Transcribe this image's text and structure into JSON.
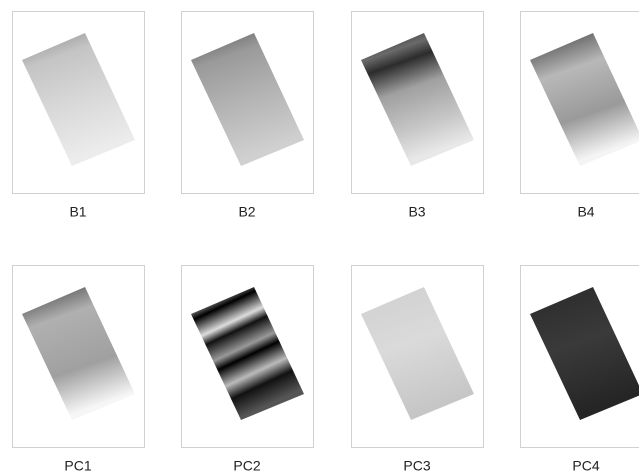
{
  "panels": [
    {
      "label": "B1"
    },
    {
      "label": "B2"
    },
    {
      "label": "B3"
    },
    {
      "label": "B4"
    },
    {
      "label": "PC1"
    },
    {
      "label": "PC2"
    },
    {
      "label": "PC3"
    },
    {
      "label": "PC4"
    }
  ]
}
